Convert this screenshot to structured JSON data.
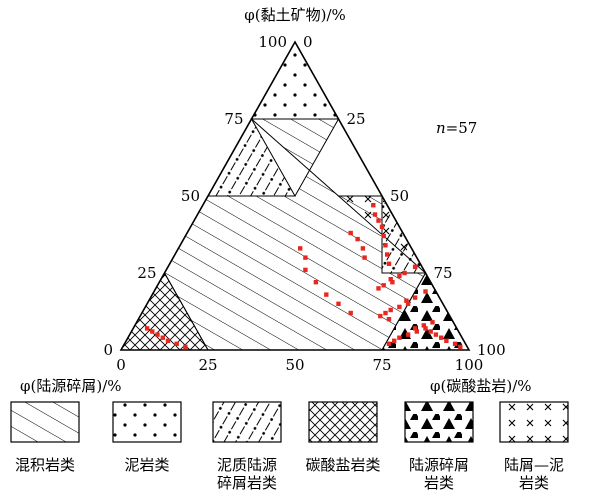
{
  "chart_data": {
    "type": "ternary",
    "apex_labels": {
      "top": "φ(黏土矿物)/%",
      "bottom_left": "φ(陆源碎屑)/%",
      "bottom_right": "φ(碳酸盐岩)/%"
    },
    "ticks": {
      "clay_left": [
        "100",
        "75",
        "50",
        "25",
        "0"
      ],
      "carbonate_right": [
        "0",
        "25",
        "50",
        "75",
        "100"
      ],
      "carbonate_bottom": [
        "0",
        "25",
        "50",
        "75",
        "100"
      ]
    },
    "annotation": {
      "italic_part": "n",
      "rest": "=57"
    },
    "regions": [
      {
        "name": "mudstone",
        "pattern": "dots",
        "polygon": [
          [
            100,
            0
          ],
          [
            75,
            25
          ],
          [
            75,
            0
          ]
        ]
      },
      {
        "name": "silty-mudstone",
        "pattern": "dash-dot",
        "polygon": [
          [
            75,
            0
          ],
          [
            50,
            0
          ],
          [
            50,
            25
          ]
        ]
      },
      {
        "name": "terrigenous-silty-mudstone",
        "pattern": "crosses",
        "polygon": [
          [
            50,
            50
          ],
          [
            25,
            75
          ],
          [
            50,
            37.5
          ]
        ]
      },
      {
        "name": "argillaceous-terrigenous-clastic",
        "pattern": "dash-dot",
        "polygon": [
          [
            50,
            50
          ],
          [
            25,
            75
          ],
          [
            25,
            62.5
          ]
        ]
      },
      {
        "name": "carbonate-rock",
        "pattern": "crosshatch",
        "polygon": [
          [
            25,
            0
          ],
          [
            0,
            25
          ],
          [
            0,
            0
          ]
        ]
      },
      {
        "name": "terrigenous-clastic",
        "pattern": "triangles",
        "polygon": [
          [
            25,
            75
          ],
          [
            0,
            100
          ],
          [
            0,
            75
          ]
        ]
      },
      {
        "name": "mixed-sedimentary-center",
        "pattern": "diagonal",
        "polygon": [
          [
            75,
            25
          ],
          [
            50,
            25
          ],
          [
            50,
            0
          ],
          [
            25,
            0
          ],
          [
            0,
            25
          ],
          [
            0,
            75
          ],
          [
            25,
            75
          ],
          [
            25,
            62.5
          ],
          [
            50,
            50
          ],
          [
            50,
            37.5
          ],
          [
            75,
            0
          ]
        ]
      }
    ],
    "points": [
      [
        47,
        49
      ],
      [
        44,
        51
      ],
      [
        42,
        53
      ],
      [
        40,
        55
      ],
      [
        37,
        57
      ],
      [
        34,
        59
      ],
      [
        31,
        61
      ],
      [
        28,
        63
      ],
      [
        38,
        47
      ],
      [
        36,
        50
      ],
      [
        33,
        53
      ],
      [
        30,
        55
      ],
      [
        27,
        71
      ],
      [
        25,
        69
      ],
      [
        24,
        68
      ],
      [
        23,
        66
      ],
      [
        22,
        67
      ],
      [
        21,
        65
      ],
      [
        20,
        64
      ],
      [
        19,
        78
      ],
      [
        17,
        76
      ],
      [
        16,
        74
      ],
      [
        15,
        75
      ],
      [
        14,
        73
      ],
      [
        13,
        71
      ],
      [
        12,
        70
      ],
      [
        11,
        69
      ],
      [
        10,
        72
      ],
      [
        9,
        85
      ],
      [
        8,
        83
      ],
      [
        7,
        81
      ],
      [
        6,
        82
      ],
      [
        5,
        80
      ],
      [
        4,
        78
      ],
      [
        3,
        77
      ],
      [
        2,
        76
      ],
      [
        1,
        97
      ],
      [
        2,
        95
      ],
      [
        3,
        92
      ],
      [
        4,
        90
      ],
      [
        5,
        88
      ],
      [
        6,
        86
      ],
      [
        7,
        84
      ],
      [
        12,
        60
      ],
      [
        15,
        55
      ],
      [
        18,
        50
      ],
      [
        22,
        45
      ],
      [
        26,
        40
      ],
      [
        30,
        38
      ],
      [
        33,
        35
      ],
      [
        1,
        18
      ],
      [
        2,
        15
      ],
      [
        3,
        12
      ],
      [
        4,
        10
      ],
      [
        5,
        8
      ],
      [
        6,
        6
      ],
      [
        7,
        4
      ]
    ],
    "legend": [
      {
        "name": "mixed",
        "pattern": "diagonal",
        "label": "混积岩类"
      },
      {
        "name": "mudstone",
        "pattern": "dots",
        "label": "泥岩类"
      },
      {
        "name": "argillaceous-clastic",
        "pattern": "dash-dot",
        "label": "泥质陆源碎屑岩类"
      },
      {
        "name": "carbonate",
        "pattern": "crosshatch",
        "label": "碳酸盐岩类"
      },
      {
        "name": "terrigenous",
        "pattern": "triangles",
        "label": "陆源碎屑岩类"
      },
      {
        "name": "silty-mudstone",
        "pattern": "crosses",
        "label": "陆屑—泥岩类"
      }
    ],
    "colors": {
      "point": "#e8281e",
      "line": "#000000"
    }
  }
}
